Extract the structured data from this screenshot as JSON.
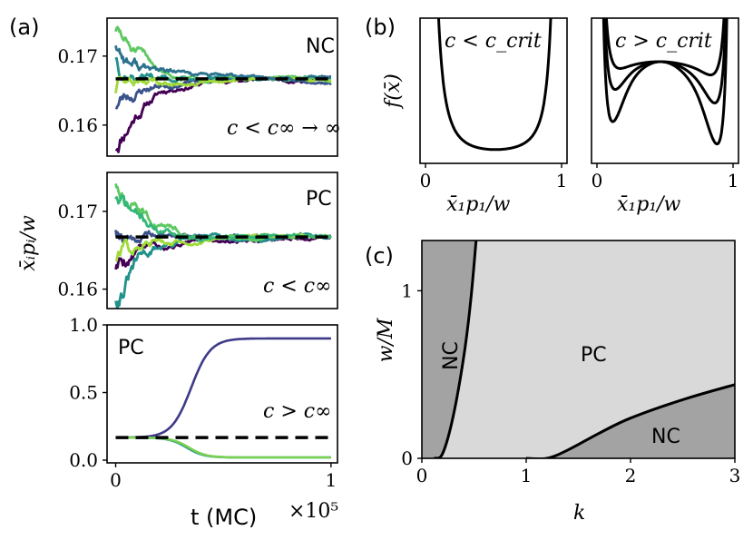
{
  "panel_labels": {
    "a": "(a)",
    "b": "(b)",
    "c": "(c)"
  },
  "chart_data": [
    {
      "panel": "a-top",
      "type": "line",
      "region_label": "NC",
      "condition": "c < c∞ → ∞",
      "ylabel": "x̄ᵢpᵢ/w",
      "yticks": [
        "0.16",
        "0.17"
      ],
      "ylim": [
        0.1555,
        0.1755
      ],
      "xlim": [
        -0.04,
        1.03
      ],
      "equilibrium": 0.1667,
      "series": [
        {
          "color": "#440154",
          "seed": 11,
          "start": 0.157,
          "amp": 0.002
        },
        {
          "color": "#3b528b",
          "seed": 23,
          "start": 0.163,
          "amp": 0.0018
        },
        {
          "color": "#21918c",
          "seed": 37,
          "start": 0.17,
          "amp": 0.002
        },
        {
          "color": "#5ec962",
          "seed": 51,
          "start": 0.174,
          "amp": 0.0018
        },
        {
          "color": "#a0da39",
          "seed": 63,
          "start": 0.165,
          "amp": 0.0016
        },
        {
          "color": "#2c728e",
          "seed": 77,
          "start": 0.172,
          "amp": 0.002
        }
      ]
    },
    {
      "panel": "a-middle",
      "type": "line",
      "region_label": "PC",
      "condition": "c < c∞",
      "yticks": [
        "0.16",
        "0.17"
      ],
      "ylim": [
        0.1575,
        0.175
      ],
      "xlim": [
        -0.04,
        1.03
      ],
      "equilibrium": 0.1667,
      "series": [
        {
          "color": "#440154",
          "seed": 5,
          "start": 0.163,
          "amp": 0.0018
        },
        {
          "color": "#3b528b",
          "seed": 19,
          "start": 0.168,
          "amp": 0.0016
        },
        {
          "color": "#21918c",
          "seed": 31,
          "start": 0.159,
          "amp": 0.002
        },
        {
          "color": "#5ec962",
          "seed": 45,
          "start": 0.174,
          "amp": 0.0018
        },
        {
          "color": "#a0da39",
          "seed": 57,
          "start": 0.164,
          "amp": 0.0016
        },
        {
          "color": "#35b779",
          "seed": 71,
          "start": 0.172,
          "amp": 0.0018
        }
      ]
    },
    {
      "panel": "a-bottom",
      "type": "line",
      "region_label": "PC",
      "condition": "c > c∞",
      "xlabel": "t (MC)",
      "x_multiplier": "×10⁵",
      "xticks": [
        "0",
        "1"
      ],
      "yticks": [
        "0.0",
        "0.5",
        "1.0"
      ],
      "ylim": [
        -0.02,
        1.0
      ],
      "xlim": [
        -0.04,
        1.03
      ],
      "equilibrium": 0.1667,
      "series": [
        {
          "color": "#3e3a89",
          "final": 0.9,
          "midpoint": 0.35,
          "width": 0.045
        },
        {
          "color": "#1f968b",
          "final": 0.02,
          "midpoint": 0.33,
          "width": 0.04
        },
        {
          "color": "#7ad151",
          "final": 0.02,
          "midpoint": 0.34,
          "width": 0.04
        }
      ]
    },
    {
      "panel": "b-left",
      "type": "line",
      "condition": "c < c_crit",
      "ylabel": "f(x̄)",
      "xlabel": "x̄₁p₁/w",
      "xticks": [
        "0",
        "1"
      ],
      "xlim": [
        -0.04,
        1.04
      ],
      "curves": [
        {
          "kind": "u-shape",
          "min_at": 0.6,
          "min_level": 0.0
        }
      ]
    },
    {
      "panel": "b-right",
      "type": "line",
      "condition": "c > c_crit",
      "xlabel": "x̄₁p₁/w",
      "xticks": [
        "0",
        "1"
      ],
      "xlim": [
        -0.04,
        1.04
      ],
      "curves": [
        {
          "kind": "double-dip",
          "depth": 0.22
        },
        {
          "kind": "double-dip",
          "depth": 0.45
        },
        {
          "kind": "double-dip",
          "depth": 0.75
        }
      ]
    },
    {
      "panel": "c",
      "type": "area",
      "xlabel": "k",
      "ylabel": "w/M",
      "xticks": [
        "0",
        "1",
        "2",
        "3"
      ],
      "yticks": [
        "0",
        "1"
      ],
      "xlim": [
        0,
        3
      ],
      "ylim": [
        0,
        1.3
      ],
      "regions": {
        "upper_left": "NC",
        "middle": "PC",
        "lower_right": "NC"
      },
      "colors": {
        "nc": "#a3a3a3",
        "pc": "#d9d9d9"
      },
      "boundary_left": {
        "x": [
          0.12,
          0.2,
          0.3,
          0.4,
          0.47,
          0.52
        ],
        "y": [
          0.0,
          0.03,
          0.25,
          0.6,
          0.95,
          1.3
        ]
      },
      "boundary_right": {
        "x": [
          1.0,
          1.2,
          1.4,
          1.7,
          2.0,
          2.5,
          3.0
        ],
        "y": [
          0.0,
          0.0,
          0.05,
          0.15,
          0.24,
          0.35,
          0.44
        ]
      }
    }
  ]
}
